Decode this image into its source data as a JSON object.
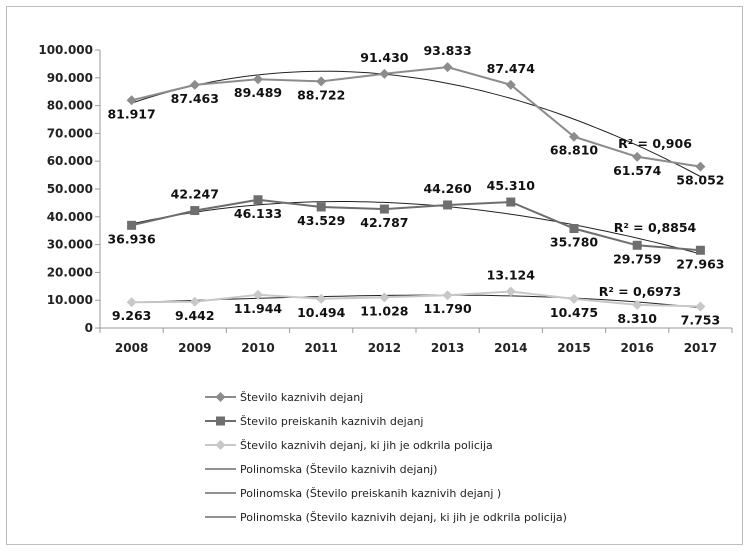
{
  "chart_data": {
    "type": "line",
    "categories": [
      "2008",
      "2009",
      "2010",
      "2011",
      "2012",
      "2013",
      "2014",
      "2015",
      "2016",
      "2017"
    ],
    "ylim": [
      0,
      100000
    ],
    "y_ticks": [
      "0",
      "10.000",
      "20.000",
      "30.000",
      "40.000",
      "50.000",
      "60.000",
      "70.000",
      "80.000",
      "90.000",
      "100.000"
    ],
    "grid": false,
    "legend_position": "bottom",
    "series": [
      {
        "name": "Število kaznivih dejanj",
        "values": [
          81917,
          87463,
          89489,
          88722,
          91430,
          93833,
          87474,
          68810,
          61574,
          58052
        ],
        "labels": [
          "81.917",
          "87.463",
          "89.489",
          "88.722",
          "91.430",
          "93.833",
          "87.474",
          "68.810",
          "61.574",
          "58.052"
        ],
        "marker": "diamond",
        "color": "#8c8c8c"
      },
      {
        "name": "Število preiskanih kaznivih dejanj",
        "values": [
          36936,
          42247,
          46133,
          43529,
          42787,
          44260,
          45310,
          35780,
          29759,
          27963
        ],
        "labels": [
          "36.936",
          "42.247",
          "46.133",
          "43.529",
          "42.787",
          "44.260",
          "45.310",
          "35.780",
          "29.759",
          "27.963"
        ],
        "marker": "square",
        "color": "#6e6e6e"
      },
      {
        "name": "Število kaznivih dejanj, ki jih je odkrila policija",
        "values": [
          9263,
          9442,
          11944,
          10494,
          11028,
          11790,
          13124,
          10475,
          8310,
          7753
        ],
        "labels": [
          "9.263",
          "9.442",
          "11.944",
          "10.494",
          "11.028",
          "11.790",
          "13.124",
          "10.475",
          "8.310",
          "7.753"
        ],
        "marker": "diamond",
        "color": "#c8c8c8"
      }
    ],
    "trendlines": [
      {
        "name": "Polinomska (Število kaznivih dejanj)",
        "r2": "R² = 0,906",
        "color": "#222222"
      },
      {
        "name": "Polinomska (Število preiskanih kaznivih dejanj )",
        "r2": "R² = 0,8854",
        "color": "#222222"
      },
      {
        "name": "Polinomska (Število kaznivih dejanj, ki jih je odkrila policija)",
        "r2": "R² = 0,6973",
        "color": "#222222"
      }
    ]
  }
}
